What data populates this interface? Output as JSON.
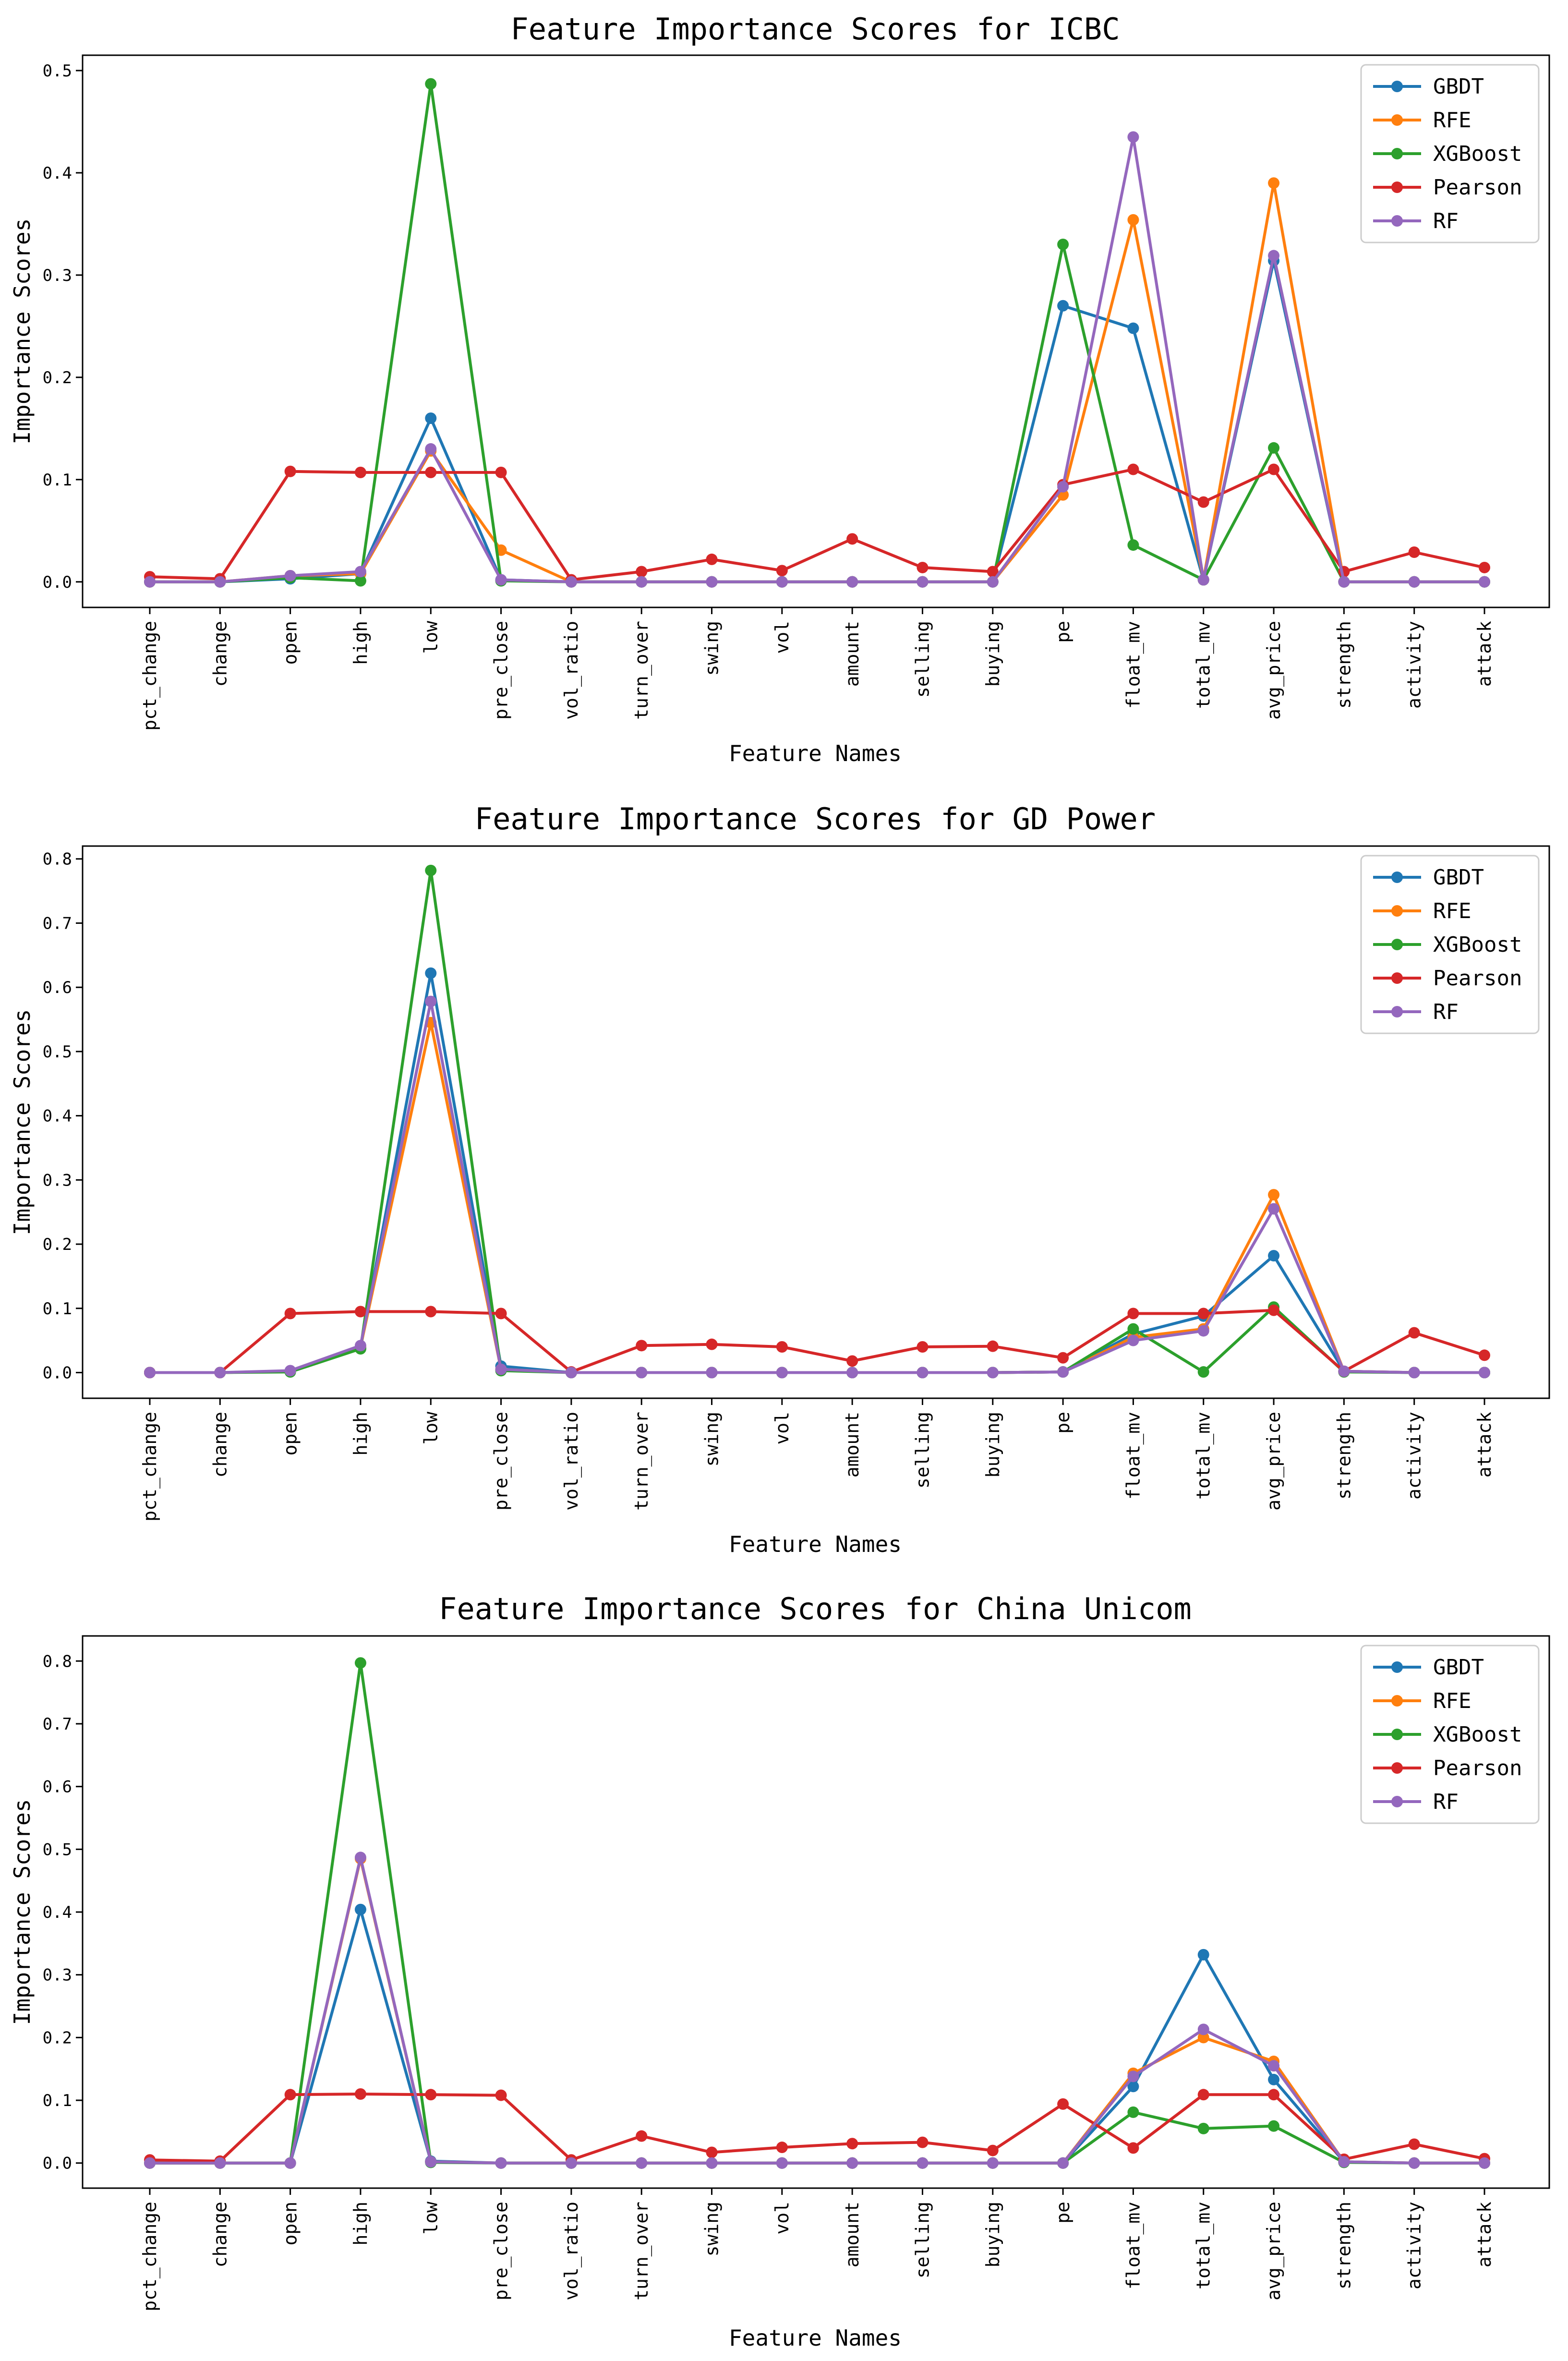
{
  "chart_data": [
    {
      "type": "line",
      "title": "Feature Importance Scores for ICBC",
      "xlabel": "Feature Names",
      "ylabel": "Importance Scores",
      "ylim": [
        -0.025,
        0.515
      ],
      "yticks": [
        "0.0",
        "0.1",
        "0.2",
        "0.3",
        "0.4",
        "0.5"
      ],
      "legend": "top-right",
      "categories": [
        "pct_change",
        "change",
        "open",
        "high",
        "low",
        "pre_close",
        "vol_ratio",
        "turn_over",
        "swing",
        "vol",
        "amount",
        "selling",
        "buying",
        "pe",
        "float_mv",
        "total_mv",
        "avg_price",
        "strength",
        "activity",
        "attack"
      ],
      "series": [
        {
          "name": "GBDT",
          "color": "#1f77b4",
          "values": [
            0.0,
            0.0,
            0.003,
            0.008,
            0.16,
            0.002,
            0.0,
            0.0,
            0.0,
            0.0,
            0.0,
            0.0,
            0.0,
            0.27,
            0.248,
            0.002,
            0.314,
            0.0,
            0.0,
            0.0
          ]
        },
        {
          "name": "RFE",
          "color": "#ff7f0e",
          "values": [
            0.0,
            0.0,
            0.006,
            0.008,
            0.128,
            0.031,
            0.0,
            0.0,
            0.0,
            0.0,
            0.0,
            0.0,
            0.0,
            0.085,
            0.354,
            0.002,
            0.39,
            0.0,
            0.0,
            0.0
          ]
        },
        {
          "name": "XGBoost",
          "color": "#2ca02c",
          "values": [
            0.0,
            0.0,
            0.004,
            0.001,
            0.487,
            0.001,
            0.0,
            0.0,
            0.0,
            0.0,
            0.0,
            0.0,
            0.0,
            0.33,
            0.036,
            0.002,
            0.131,
            0.0,
            0.0,
            0.0
          ]
        },
        {
          "name": "Pearson",
          "color": "#d62728",
          "values": [
            0.005,
            0.003,
            0.108,
            0.107,
            0.107,
            0.107,
            0.002,
            0.01,
            0.022,
            0.011,
            0.042,
            0.014,
            0.01,
            0.095,
            0.11,
            0.078,
            0.11,
            0.01,
            0.029,
            0.014
          ]
        },
        {
          "name": "RF",
          "color": "#9467bd",
          "values": [
            0.0,
            0.0,
            0.006,
            0.01,
            0.13,
            0.002,
            0.0,
            0.0,
            0.0,
            0.0,
            0.0,
            0.0,
            0.0,
            0.093,
            0.435,
            0.002,
            0.319,
            0.0,
            0.0,
            0.0
          ]
        }
      ]
    },
    {
      "type": "line",
      "title": "Feature Importance Scores for GD Power",
      "xlabel": "Feature Names",
      "ylabel": "Importance Scores",
      "ylim": [
        -0.04,
        0.82
      ],
      "yticks": [
        "0.0",
        "0.1",
        "0.2",
        "0.3",
        "0.4",
        "0.5",
        "0.6",
        "0.7",
        "0.8"
      ],
      "legend": "top-right",
      "categories": [
        "pct_change",
        "change",
        "open",
        "high",
        "low",
        "pre_close",
        "vol_ratio",
        "turn_over",
        "swing",
        "vol",
        "amount",
        "selling",
        "buying",
        "pe",
        "float_mv",
        "total_mv",
        "avg_price",
        "strength",
        "activity",
        "attack"
      ],
      "series": [
        {
          "name": "GBDT",
          "color": "#1f77b4",
          "values": [
            0.0,
            0.0,
            0.002,
            0.038,
            0.622,
            0.01,
            0.0,
            0.0,
            0.0,
            0.0,
            0.0,
            0.0,
            0.0,
            0.001,
            0.06,
            0.088,
            0.182,
            0.002,
            0.0,
            0.0
          ]
        },
        {
          "name": "RFE",
          "color": "#ff7f0e",
          "values": [
            0.0,
            0.0,
            0.002,
            0.04,
            0.545,
            0.005,
            0.0,
            0.0,
            0.0,
            0.0,
            0.0,
            0.0,
            0.0,
            0.001,
            0.055,
            0.068,
            0.277,
            0.002,
            0.0,
            0.0
          ]
        },
        {
          "name": "XGBoost",
          "color": "#2ca02c",
          "values": [
            0.0,
            0.0,
            0.001,
            0.037,
            0.782,
            0.003,
            0.0,
            0.0,
            0.0,
            0.0,
            0.0,
            0.0,
            0.0,
            0.001,
            0.068,
            0.001,
            0.102,
            0.001,
            0.0,
            0.0
          ]
        },
        {
          "name": "Pearson",
          "color": "#d62728",
          "values": [
            0.0,
            0.0,
            0.092,
            0.095,
            0.095,
            0.092,
            0.001,
            0.042,
            0.044,
            0.04,
            0.018,
            0.04,
            0.041,
            0.023,
            0.092,
            0.092,
            0.097,
            0.002,
            0.062,
            0.027
          ]
        },
        {
          "name": "RF",
          "color": "#9467bd",
          "values": [
            0.0,
            0.0,
            0.003,
            0.042,
            0.578,
            0.005,
            0.0,
            0.0,
            0.0,
            0.0,
            0.0,
            0.0,
            0.0,
            0.001,
            0.05,
            0.065,
            0.255,
            0.002,
            0.0,
            0.0
          ]
        }
      ]
    },
    {
      "type": "line",
      "title": "Feature Importance Scores for China Unicom",
      "xlabel": "Feature Names",
      "ylabel": "Importance Scores",
      "ylim": [
        -0.04,
        0.84
      ],
      "yticks": [
        "0.0",
        "0.1",
        "0.2",
        "0.3",
        "0.4",
        "0.5",
        "0.6",
        "0.7",
        "0.8"
      ],
      "legend": "top-right",
      "categories": [
        "pct_change",
        "change",
        "open",
        "high",
        "low",
        "pre_close",
        "vol_ratio",
        "turn_over",
        "swing",
        "vol",
        "amount",
        "selling",
        "buying",
        "pe",
        "float_mv",
        "total_mv",
        "avg_price",
        "strength",
        "activity",
        "attack"
      ],
      "series": [
        {
          "name": "GBDT",
          "color": "#1f77b4",
          "values": [
            0.0,
            0.0,
            0.0,
            0.404,
            0.003,
            0.0,
            0.0,
            0.0,
            0.0,
            0.0,
            0.0,
            0.0,
            0.0,
            0.0,
            0.122,
            0.332,
            0.133,
            0.002,
            0.0,
            0.0
          ]
        },
        {
          "name": "RFE",
          "color": "#ff7f0e",
          "values": [
            0.0,
            0.0,
            0.0,
            0.485,
            0.002,
            0.0,
            0.0,
            0.0,
            0.0,
            0.0,
            0.0,
            0.0,
            0.0,
            0.0,
            0.143,
            0.2,
            0.162,
            0.002,
            0.0,
            0.0
          ]
        },
        {
          "name": "XGBoost",
          "color": "#2ca02c",
          "values": [
            0.0,
            0.0,
            0.0,
            0.797,
            0.001,
            0.0,
            0.0,
            0.0,
            0.0,
            0.0,
            0.0,
            0.0,
            0.0,
            0.0,
            0.081,
            0.055,
            0.059,
            0.001,
            0.0,
            0.0
          ]
        },
        {
          "name": "Pearson",
          "color": "#d62728",
          "values": [
            0.005,
            0.003,
            0.109,
            0.11,
            0.109,
            0.108,
            0.005,
            0.043,
            0.017,
            0.025,
            0.031,
            0.033,
            0.02,
            0.094,
            0.024,
            0.109,
            0.109,
            0.006,
            0.03,
            0.007
          ]
        },
        {
          "name": "RF",
          "color": "#9467bd",
          "values": [
            0.0,
            0.0,
            0.0,
            0.487,
            0.002,
            0.0,
            0.0,
            0.0,
            0.0,
            0.0,
            0.0,
            0.0,
            0.0,
            0.0,
            0.138,
            0.213,
            0.155,
            0.002,
            0.0,
            0.0
          ]
        }
      ]
    }
  ]
}
